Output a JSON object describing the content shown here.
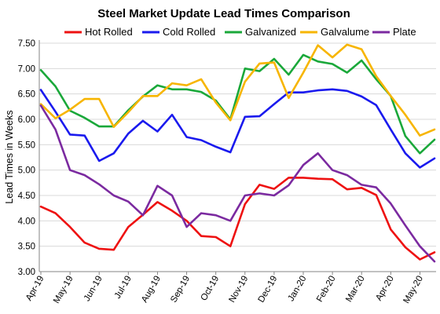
{
  "chart_data": {
    "type": "line",
    "title": "Steel Market Update Lead Times Comparison",
    "xlabel": "",
    "ylabel": "Lead Times in Weeks",
    "ylim": [
      3.0,
      7.5
    ],
    "yticks": [
      "3.00",
      "3.50",
      "4.00",
      "4.50",
      "5.00",
      "5.50",
      "6.00",
      "6.50",
      "7.00",
      "7.50"
    ],
    "x_tick_labels": [
      "Apr-19",
      "May-19",
      "Jun-19",
      "Jul-19",
      "Aug-19",
      "Sep-19",
      "Oct-19",
      "Nov-19",
      "Dec-19",
      "Jan-20",
      "Feb-20",
      "Mar-20",
      "Apr-20",
      "May-20"
    ],
    "points_per_month": 2,
    "grid": "horizontal",
    "legend_position": "top",
    "series": [
      {
        "name": "Hot Rolled",
        "color": "#ee1111",
        "values": [
          4.28,
          4.15,
          3.88,
          3.57,
          3.45,
          3.43,
          3.88,
          4.12,
          4.37,
          4.2,
          4.0,
          3.7,
          3.68,
          3.5,
          4.33,
          4.71,
          4.63,
          4.85,
          4.85,
          4.83,
          4.82,
          4.62,
          4.65,
          4.51,
          3.83,
          3.48,
          3.24,
          3.38
        ]
      },
      {
        "name": "Cold Rolled",
        "color": "#1a1aee",
        "values": [
          6.58,
          6.15,
          5.7,
          5.68,
          5.18,
          5.33,
          5.72,
          5.97,
          5.76,
          6.09,
          5.65,
          5.59,
          5.46,
          5.35,
          6.05,
          6.06,
          6.3,
          6.53,
          6.53,
          6.57,
          6.59,
          6.56,
          6.45,
          6.28,
          5.8,
          5.33,
          5.05,
          5.23
        ]
      },
      {
        "name": "Galvanized",
        "color": "#1aa83a",
        "values": [
          6.97,
          6.65,
          6.17,
          6.03,
          5.86,
          5.86,
          6.18,
          6.45,
          6.67,
          6.59,
          6.59,
          6.54,
          6.37,
          6.0,
          7.0,
          6.95,
          7.19,
          6.88,
          7.27,
          7.14,
          7.09,
          6.92,
          7.16,
          6.79,
          6.46,
          5.67,
          5.33,
          5.6
        ]
      },
      {
        "name": "Galvalume",
        "color": "#f7b500",
        "values": [
          6.3,
          6.02,
          6.19,
          6.4,
          6.4,
          5.85,
          6.14,
          6.46,
          6.46,
          6.71,
          6.67,
          6.79,
          6.33,
          5.98,
          6.74,
          7.1,
          7.12,
          6.42,
          6.92,
          7.46,
          7.22,
          7.47,
          7.38,
          6.85,
          6.46,
          6.09,
          5.68,
          5.8
        ]
      },
      {
        "name": "Plate",
        "color": "#7b2aa0",
        "values": [
          6.27,
          5.8,
          5.0,
          4.9,
          4.72,
          4.5,
          4.38,
          4.11,
          4.69,
          4.5,
          3.88,
          4.15,
          4.11,
          4.0,
          4.5,
          4.54,
          4.5,
          4.7,
          5.1,
          5.33,
          5.0,
          4.9,
          4.71,
          4.66,
          4.34,
          3.91,
          3.5,
          3.2
        ]
      }
    ]
  }
}
